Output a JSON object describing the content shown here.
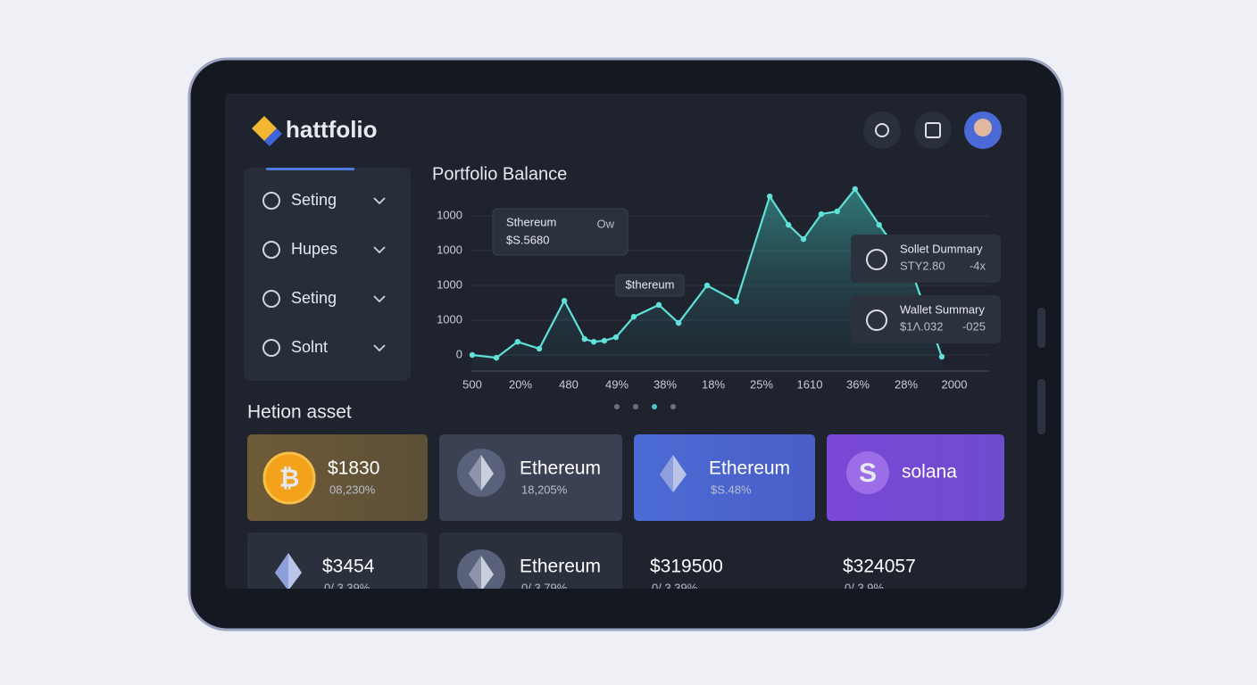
{
  "header": {
    "brand": "hattfolio"
  },
  "sidebar": {
    "items": [
      "Seting",
      "Hupes",
      "Seting",
      "Solnt"
    ]
  },
  "chart": {
    "type": "line",
    "title": "Portfolio Balance",
    "categories": [
      "500",
      "20%",
      "480",
      "49%",
      "38%",
      "18%",
      "25%",
      "1610",
      "36%",
      "28%",
      "2000"
    ],
    "x": [
      0,
      0.5,
      0.94,
      1.39,
      1.91,
      2.33,
      2.52,
      2.74,
      2.98,
      3.35,
      3.87,
      4.28,
      4.87,
      5.48,
      6.17,
      6.56,
      6.87,
      7.24,
      7.57,
      7.94,
      8.44,
      9.09,
      9.74
    ],
    "values": [
      0,
      -0.08,
      0.38,
      0.18,
      1.56,
      0.46,
      0.38,
      0.41,
      0.51,
      1.1,
      1.44,
      0.92,
      2.0,
      1.54,
      4.56,
      3.74,
      3.33,
      4.05,
      4.13,
      4.77,
      3.74,
      2.51,
      -0.05
    ],
    "color": "#5fe0d8",
    "xlim": [
      0,
      10
    ],
    "ylim": [
      0,
      4
    ],
    "yticks": [
      {
        "value": 4,
        "label": "1000"
      },
      {
        "value": 3,
        "label": "1000"
      },
      {
        "value": 2,
        "label": "1000"
      },
      {
        "value": 1,
        "label": "1000"
      },
      0
    ]
  },
  "tooltips": [
    {
      "title": "Sthereum",
      "value": "$S.5680",
      "tag": "Ow"
    },
    {
      "title": "$thereum"
    }
  ],
  "summaries": [
    {
      "title": "Sollet Dummary",
      "value": "STY2.80",
      "change": "-4x"
    },
    {
      "title": "Wallet Summary",
      "value": "$1Λ.032",
      "change": "-025"
    }
  ],
  "assets": {
    "title": "Hetion asset",
    "cards": [
      {
        "icon": "₿",
        "label": "$1830",
        "sub": "08,230%"
      },
      {
        "label": "Ethereum",
        "sub": "18,205%"
      },
      {
        "label": "Ethereum",
        "sub": "$S.48%"
      },
      {
        "icon": "S",
        "label": "solana"
      },
      {
        "label": "$3454",
        "sub": "0/,3.39%"
      },
      {
        "label": "Ethereum",
        "sub": "0/,3.79%"
      },
      {
        "label": "$319500",
        "sub": "0/,3.39%"
      },
      {
        "label": "$324057",
        "sub": "0/,3.9%"
      }
    ]
  }
}
